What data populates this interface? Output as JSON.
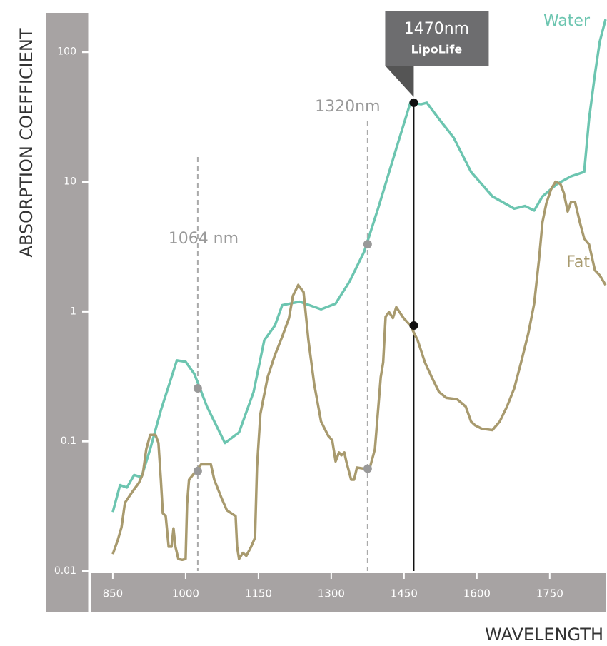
{
  "chart_data": {
    "type": "line",
    "x_label": "WAVELENGTH",
    "y_label": "ABSORPTION COEFFICIENT",
    "log_y": true,
    "xlim": [
      806,
      1865
    ],
    "ylim": [
      0.01,
      200
    ],
    "xticks": [
      850,
      1000,
      1150,
      1300,
      1450,
      1600,
      1750
    ],
    "yticks": [
      0.01,
      0.1,
      1,
      10,
      100
    ],
    "series": [
      {
        "name": "Water",
        "color": "#6cc5b0",
        "x": [
          850,
          865,
          879,
          894,
          909,
          927,
          949,
          982,
          1000,
          1018,
          1044,
          1081,
          1110,
          1140,
          1162,
          1184,
          1199,
          1235,
          1279,
          1309,
          1338,
          1368,
          1397,
          1434,
          1463,
          1485,
          1497,
          1522,
          1552,
          1588,
          1632,
          1677,
          1699,
          1718,
          1735,
          1765,
          1794,
          1821,
          1831,
          1843,
          1853,
          1865
        ],
        "values": [
          0.0285,
          0.046,
          0.044,
          0.055,
          0.053,
          0.087,
          0.173,
          0.42,
          0.41,
          0.33,
          0.185,
          0.097,
          0.117,
          0.24,
          0.6,
          0.78,
          1.12,
          1.19,
          1.04,
          1.15,
          1.71,
          2.9,
          6.3,
          18,
          40.6,
          39.5,
          40.6,
          30.4,
          21.9,
          11.9,
          7.7,
          6.2,
          6.5,
          6.0,
          7.7,
          9.6,
          11,
          11.9,
          30.4,
          67,
          120,
          178
        ]
      },
      {
        "name": "Fat",
        "color": "#a89a6e",
        "x": [
          850,
          860,
          868,
          875,
          890,
          904,
          912,
          919,
          927,
          938,
          944,
          949,
          953,
          959,
          965,
          971,
          975,
          979,
          985,
          993,
          1000,
          1003,
          1007,
          1022,
          1032,
          1052,
          1059,
          1074,
          1085,
          1103,
          1106,
          1110,
          1118,
          1125,
          1135,
          1143,
          1147,
          1154,
          1169,
          1184,
          1199,
          1213,
          1221,
          1232,
          1243,
          1253,
          1265,
          1279,
          1294,
          1302,
          1309,
          1316,
          1321,
          1327,
          1331,
          1341,
          1347,
          1353,
          1368,
          1379,
          1390,
          1402,
          1407,
          1412,
          1419,
          1427,
          1434,
          1449,
          1463,
          1478,
          1493,
          1507,
          1522,
          1537,
          1559,
          1577,
          1588,
          1596,
          1610,
          1632,
          1647,
          1662,
          1677,
          1691,
          1706,
          1718,
          1728,
          1735,
          1743,
          1753,
          1762,
          1772,
          1779,
          1787,
          1794,
          1802,
          1812,
          1821,
          1831,
          1843,
          1853,
          1865
        ],
        "values": [
          0.0135,
          0.0172,
          0.0218,
          0.0336,
          0.0407,
          0.048,
          0.0564,
          0.087,
          0.112,
          0.112,
          0.097,
          0.0506,
          0.0279,
          0.0265,
          0.0154,
          0.0154,
          0.0213,
          0.0154,
          0.0124,
          0.0122,
          0.0124,
          0.0328,
          0.0506,
          0.0595,
          0.0664,
          0.0664,
          0.0506,
          0.0365,
          0.0294,
          0.0265,
          0.0154,
          0.0124,
          0.0138,
          0.0131,
          0.0154,
          0.0181,
          0.0628,
          0.162,
          0.312,
          0.462,
          0.64,
          0.89,
          1.32,
          1.6,
          1.41,
          0.6,
          0.274,
          0.142,
          0.11,
          0.102,
          0.07,
          0.082,
          0.078,
          0.082,
          0.07,
          0.0506,
          0.0506,
          0.0628,
          0.0615,
          0.0615,
          0.087,
          0.312,
          0.405,
          0.91,
          0.99,
          0.89,
          1.08,
          0.89,
          0.78,
          0.6,
          0.405,
          0.312,
          0.24,
          0.216,
          0.211,
          0.185,
          0.142,
          0.133,
          0.125,
          0.122,
          0.142,
          0.185,
          0.256,
          0.405,
          0.68,
          1.15,
          2.53,
          4.87,
          6.8,
          8.8,
          10,
          9.6,
          8.2,
          5.9,
          7.0,
          7.0,
          4.87,
          3.65,
          3.29,
          2.08,
          1.9,
          1.6
        ]
      }
    ],
    "annotations": [
      {
        "label": "1064 nm",
        "x": 1025,
        "points": [
          0.256,
          0.059
        ]
      },
      {
        "label": "1320nm",
        "x": 1375,
        "points": [
          3.3,
          0.0615
        ]
      },
      {
        "label": "1470nm",
        "sublabel": "LipoLife",
        "x": 1470,
        "points": [
          40.6,
          0.78
        ]
      }
    ]
  }
}
